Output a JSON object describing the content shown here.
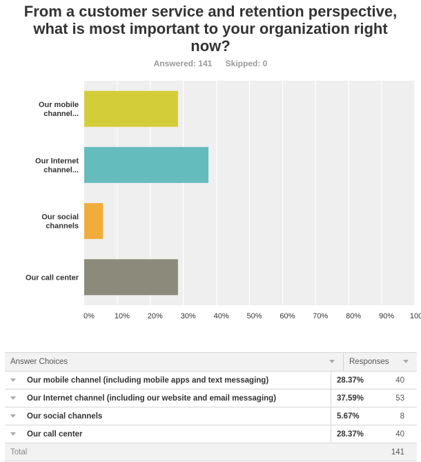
{
  "chart_data": {
    "type": "bar",
    "orientation": "horizontal",
    "title": "From a customer service and retention perspective, what is most important to your organization right now?",
    "categories": [
      [
        "Our mobile",
        "channel..."
      ],
      [
        "Our Internet",
        "channel..."
      ],
      [
        "Our social",
        "channels"
      ],
      [
        "Our call center"
      ]
    ],
    "values": [
      28.37,
      37.59,
      5.67,
      28.37
    ],
    "colors": [
      "#d4cd3a",
      "#65bcbc",
      "#f1ac3c",
      "#8c8a7a"
    ],
    "xlim": [
      0,
      100
    ],
    "xticks": [
      "0%",
      "10%",
      "20%",
      "30%",
      "40%",
      "50%",
      "60%",
      "70%",
      "80%",
      "90%",
      "100%"
    ],
    "grid": true,
    "legend": "none"
  },
  "stats": {
    "answered": "Answered: 141",
    "skipped": "Skipped: 0"
  },
  "table": {
    "header": {
      "choice": "Answer Choices",
      "responses": "Responses"
    },
    "rows": [
      {
        "choice": "Our mobile channel (including mobile apps and text messaging)",
        "pct": "28.37%",
        "count": "40"
      },
      {
        "choice": "Our Internet channel (including our website and email messaging)",
        "pct": "37.59%",
        "count": "53"
      },
      {
        "choice": "Our social channels",
        "pct": "5.67%",
        "count": "8"
      },
      {
        "choice": "Our call center",
        "pct": "28.37%",
        "count": "40"
      }
    ],
    "total": {
      "label": "Total",
      "count": "141"
    }
  }
}
